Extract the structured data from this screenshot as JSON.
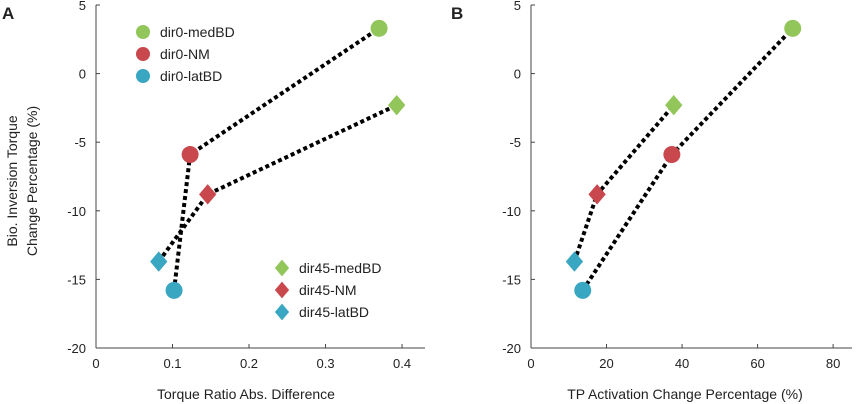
{
  "colors": {
    "medBD": "#92c65b",
    "NM": "#c8484d",
    "latBD": "#3aa7c2"
  },
  "chart_data": [
    {
      "panel_label": "A",
      "type": "scatter",
      "xlabel": "Torque Ratio Abs. Difference",
      "ylabel_lines": [
        "Bio. Inversion Torque",
        "Change Percentage (%)"
      ],
      "xlim": [
        0,
        0.43
      ],
      "ylim": [
        -20,
        5
      ],
      "xticks": [
        0,
        0.1,
        0.2,
        0.3,
        0.4
      ],
      "xtick_labels": [
        "0",
        "0.1",
        "0.2",
        "0.3",
        "0.4"
      ],
      "yticks": [
        5,
        0,
        -5,
        -10,
        -15,
        -20
      ],
      "ytick_labels": [
        "5",
        "0",
        "-5",
        "-10",
        "-15",
        "-20"
      ],
      "series": [
        {
          "name": "dir0-medBD",
          "marker": "circle",
          "color_key": "medBD",
          "x": 0.37,
          "y": 3.3
        },
        {
          "name": "dir0-NM",
          "marker": "circle",
          "color_key": "NM",
          "x": 0.123,
          "y": -5.9
        },
        {
          "name": "dir0-latBD",
          "marker": "circle",
          "color_key": "latBD",
          "x": 0.102,
          "y": -15.8
        },
        {
          "name": "dir45-medBD",
          "marker": "diamond",
          "color_key": "medBD",
          "x": 0.393,
          "y": -2.3
        },
        {
          "name": "dir45-NM",
          "marker": "diamond",
          "color_key": "NM",
          "x": 0.146,
          "y": -8.8
        },
        {
          "name": "dir45-latBD",
          "marker": "diamond",
          "color_key": "latBD",
          "x": 0.082,
          "y": -13.7
        }
      ],
      "connections": [
        [
          "dir0-latBD",
          "dir0-NM",
          "dir0-medBD"
        ],
        [
          "dir45-latBD",
          "dir45-NM",
          "dir45-medBD"
        ]
      ],
      "legends": [
        {
          "placement": "top-left",
          "items": [
            "dir0-medBD",
            "dir0-NM",
            "dir0-latBD"
          ]
        },
        {
          "placement": "bottom-right",
          "items": [
            "dir45-medBD",
            "dir45-NM",
            "dir45-latBD"
          ]
        }
      ]
    },
    {
      "panel_label": "B",
      "type": "scatter",
      "xlabel": "TP Activation Change Percentage (%)",
      "ylabel_lines": [],
      "xlim": [
        0,
        85
      ],
      "ylim": [
        -20,
        5
      ],
      "xticks": [
        0,
        20,
        40,
        60,
        80
      ],
      "xtick_labels": [
        "0",
        "20",
        "40",
        "60",
        "80"
      ],
      "yticks": [
        5,
        0,
        -5,
        -10,
        -15,
        -20
      ],
      "ytick_labels": [
        "5",
        "0",
        "-5",
        "-10",
        "-15",
        "-20"
      ],
      "series": [
        {
          "name": "dir0-medBD",
          "marker": "circle",
          "color_key": "medBD",
          "x": 69.3,
          "y": 3.3
        },
        {
          "name": "dir0-NM",
          "marker": "circle",
          "color_key": "NM",
          "x": 37.3,
          "y": -5.9
        },
        {
          "name": "dir0-latBD",
          "marker": "circle",
          "color_key": "latBD",
          "x": 13.7,
          "y": -15.8
        },
        {
          "name": "dir45-medBD",
          "marker": "diamond",
          "color_key": "medBD",
          "x": 37.8,
          "y": -2.3
        },
        {
          "name": "dir45-NM",
          "marker": "diamond",
          "color_key": "NM",
          "x": 17.5,
          "y": -8.8
        },
        {
          "name": "dir45-latBD",
          "marker": "diamond",
          "color_key": "latBD",
          "x": 11.5,
          "y": -13.7
        }
      ],
      "connections": [
        [
          "dir0-latBD",
          "dir0-NM",
          "dir0-medBD"
        ],
        [
          "dir45-latBD",
          "dir45-NM",
          "dir45-medBD"
        ]
      ],
      "legends": []
    }
  ]
}
